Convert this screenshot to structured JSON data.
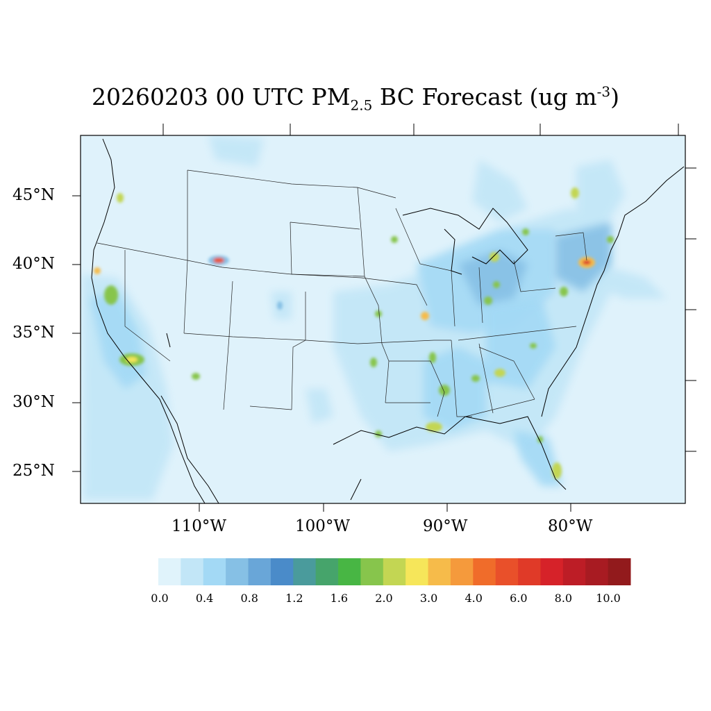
{
  "title": {
    "prefix": "20260203 00 UTC PM",
    "sub": "2.5",
    "middle": " BC Forecast (ug m",
    "sup": "-3",
    "suffix": ")"
  },
  "map": {
    "lat_labels": [
      "45°N",
      "40°N",
      "35°N",
      "30°N",
      "25°N"
    ],
    "lon_labels": [
      "110°W",
      "100°W",
      "90°W",
      "80°W"
    ],
    "background_color": "#dff2fb"
  },
  "colorbar": {
    "colors": [
      "#e0f3fb",
      "#c2e6f7",
      "#a3d9f5",
      "#86c0e5",
      "#69a6d8",
      "#4a8bc9",
      "#4a9b9c",
      "#46a46b",
      "#48b644",
      "#87c54c",
      "#c3d653",
      "#f6e65a",
      "#f6bb4a",
      "#f59a3c",
      "#f06c2a",
      "#e9502a",
      "#e03a28",
      "#d62229",
      "#bd1d26",
      "#a81b22",
      "#921a1c"
    ],
    "tick_labels": [
      "0.0",
      "0.4",
      "0.8",
      "1.2",
      "1.6",
      "2.0",
      "3.0",
      "4.0",
      "6.0",
      "8.0",
      "10.0"
    ]
  }
}
